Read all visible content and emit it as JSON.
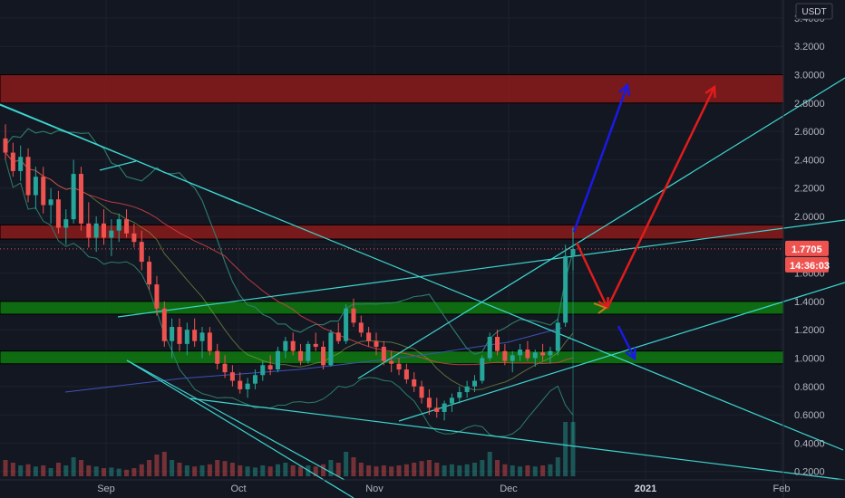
{
  "chart_data": {
    "type": "candlestick",
    "quote_unit": "USDT",
    "y_ticks": [
      "3.4000",
      "3.2000",
      "3.0000",
      "2.8000",
      "2.6000",
      "2.4000",
      "2.2000",
      "2.0000",
      "1.8000",
      "1.6000",
      "1.4000",
      "1.2000",
      "1.0000",
      "0.8000",
      "0.6000",
      "0.4000",
      "0.2000"
    ],
    "ylim": [
      0.18,
      3.45
    ],
    "x_ticks": [
      {
        "label": "Sep",
        "bold": false
      },
      {
        "label": "Oct",
        "bold": false
      },
      {
        "label": "Nov",
        "bold": false
      },
      {
        "label": "Dec",
        "bold": false
      },
      {
        "label": "2021",
        "bold": true
      },
      {
        "label": "Feb",
        "bold": false
      }
    ],
    "last_price": "1.7705",
    "countdown": "14:36:03",
    "grid": true,
    "zones": [
      {
        "kind": "resistance",
        "low": 2.8,
        "high": 3.0,
        "color": "#8b1a1a"
      },
      {
        "kind": "resistance",
        "low": 1.84,
        "high": 1.94,
        "color": "#8b1a1a"
      },
      {
        "kind": "support",
        "low": 1.31,
        "high": 1.4,
        "color": "#0f7a0f"
      },
      {
        "kind": "support",
        "low": 0.96,
        "high": 1.05,
        "color": "#0f7a0f"
      }
    ],
    "candles": [
      [
        2.55,
        2.65,
        2.4,
        2.45
      ],
      [
        2.45,
        2.52,
        2.28,
        2.32
      ],
      [
        2.32,
        2.5,
        2.25,
        2.42
      ],
      [
        2.42,
        2.48,
        2.1,
        2.15
      ],
      [
        2.15,
        2.35,
        2.05,
        2.28
      ],
      [
        2.28,
        2.35,
        2.02,
        2.08
      ],
      [
        2.08,
        2.2,
        1.95,
        2.12
      ],
      [
        2.12,
        2.18,
        1.88,
        1.92
      ],
      [
        1.92,
        2.05,
        1.8,
        1.98
      ],
      [
        1.98,
        2.4,
        1.95,
        2.3
      ],
      [
        2.3,
        2.35,
        1.9,
        1.95
      ],
      [
        1.95,
        2.1,
        1.78,
        1.85
      ],
      [
        1.85,
        2.0,
        1.75,
        1.95
      ],
      [
        1.95,
        2.05,
        1.8,
        1.85
      ],
      [
        1.85,
        1.98,
        1.72,
        1.9
      ],
      [
        1.9,
        2.02,
        1.82,
        1.98
      ],
      [
        1.98,
        2.05,
        1.85,
        1.88
      ],
      [
        1.88,
        1.95,
        1.78,
        1.82
      ],
      [
        1.82,
        1.9,
        1.62,
        1.68
      ],
      [
        1.68,
        1.72,
        1.48,
        1.52
      ],
      [
        1.52,
        1.58,
        1.3,
        1.35
      ],
      [
        1.35,
        1.4,
        1.08,
        1.12
      ],
      [
        1.12,
        1.28,
        1.0,
        1.22
      ],
      [
        1.22,
        1.28,
        1.05,
        1.1
      ],
      [
        1.1,
        1.25,
        1.02,
        1.2
      ],
      [
        1.2,
        1.28,
        1.08,
        1.12
      ],
      [
        1.12,
        1.22,
        1.0,
        1.18
      ],
      [
        1.18,
        1.22,
        1.02,
        1.05
      ],
      [
        1.05,
        1.1,
        0.92,
        0.96
      ],
      [
        0.96,
        1.02,
        0.86,
        0.9
      ],
      [
        0.9,
        0.95,
        0.8,
        0.84
      ],
      [
        0.84,
        0.9,
        0.75,
        0.78
      ],
      [
        0.78,
        0.86,
        0.72,
        0.82
      ],
      [
        0.82,
        0.92,
        0.78,
        0.88
      ],
      [
        0.88,
        0.98,
        0.84,
        0.95
      ],
      [
        0.95,
        1.02,
        0.88,
        0.92
      ],
      [
        0.92,
        1.08,
        0.9,
        1.05
      ],
      [
        1.05,
        1.15,
        1.0,
        1.12
      ],
      [
        1.12,
        1.18,
        1.02,
        1.05
      ],
      [
        1.05,
        1.1,
        0.95,
        0.98
      ],
      [
        0.98,
        1.12,
        0.96,
        1.1
      ],
      [
        1.1,
        1.18,
        1.05,
        1.08
      ],
      [
        1.08,
        1.12,
        0.92,
        0.95
      ],
      [
        0.95,
        1.2,
        0.94,
        1.18
      ],
      [
        1.18,
        1.25,
        1.1,
        1.12
      ],
      [
        1.12,
        1.38,
        1.1,
        1.35
      ],
      [
        1.35,
        1.42,
        1.22,
        1.25
      ],
      [
        1.25,
        1.3,
        1.15,
        1.18
      ],
      [
        1.18,
        1.22,
        1.08,
        1.12
      ],
      [
        1.12,
        1.18,
        1.02,
        1.08
      ],
      [
        1.08,
        1.12,
        0.95,
        0.98
      ],
      [
        0.98,
        1.05,
        0.9,
        0.96
      ],
      [
        0.96,
        1.0,
        0.88,
        0.92
      ],
      [
        0.92,
        0.96,
        0.82,
        0.85
      ],
      [
        0.85,
        0.9,
        0.76,
        0.8
      ],
      [
        0.8,
        0.84,
        0.68,
        0.72
      ],
      [
        0.72,
        0.78,
        0.6,
        0.65
      ],
      [
        0.65,
        0.72,
        0.58,
        0.62
      ],
      [
        0.62,
        0.7,
        0.56,
        0.68
      ],
      [
        0.68,
        0.75,
        0.62,
        0.72
      ],
      [
        0.72,
        0.8,
        0.68,
        0.76
      ],
      [
        0.76,
        0.84,
        0.72,
        0.8
      ],
      [
        0.8,
        0.88,
        0.76,
        0.84
      ],
      [
        0.84,
        1.02,
        0.82,
        1.0
      ],
      [
        1.0,
        1.18,
        0.98,
        1.15
      ],
      [
        1.15,
        1.2,
        1.02,
        1.05
      ],
      [
        1.05,
        1.1,
        0.95,
        0.98
      ],
      [
        0.98,
        1.05,
        0.9,
        1.02
      ],
      [
        1.02,
        1.1,
        0.98,
        1.06
      ],
      [
        1.06,
        1.12,
        0.98,
        1.0
      ],
      [
        1.0,
        1.06,
        0.94,
        1.04
      ],
      [
        1.04,
        1.1,
        0.98,
        1.02
      ],
      [
        1.02,
        1.08,
        0.96,
        1.05
      ],
      [
        1.05,
        1.28,
        1.02,
        1.25
      ],
      [
        1.25,
        1.8,
        1.22,
        1.72
      ],
      [
        1.72,
        1.92,
        1.62,
        1.77
      ]
    ],
    "volume": [
      0.3,
      0.25,
      0.2,
      0.22,
      0.18,
      0.2,
      0.15,
      0.25,
      0.2,
      0.35,
      0.3,
      0.2,
      0.18,
      0.15,
      0.16,
      0.14,
      0.12,
      0.15,
      0.22,
      0.3,
      0.4,
      0.45,
      0.3,
      0.25,
      0.2,
      0.18,
      0.2,
      0.22,
      0.3,
      0.28,
      0.25,
      0.2,
      0.18,
      0.16,
      0.2,
      0.18,
      0.22,
      0.25,
      0.2,
      0.18,
      0.2,
      0.18,
      0.22,
      0.3,
      0.25,
      0.45,
      0.35,
      0.25,
      0.2,
      0.18,
      0.2,
      0.18,
      0.2,
      0.22,
      0.25,
      0.28,
      0.3,
      0.25,
      0.2,
      0.22,
      0.2,
      0.22,
      0.25,
      0.3,
      0.45,
      0.3,
      0.22,
      0.2,
      0.18,
      0.2,
      0.18,
      0.2,
      0.22,
      0.35,
      1.0,
      1.0
    ]
  }
}
